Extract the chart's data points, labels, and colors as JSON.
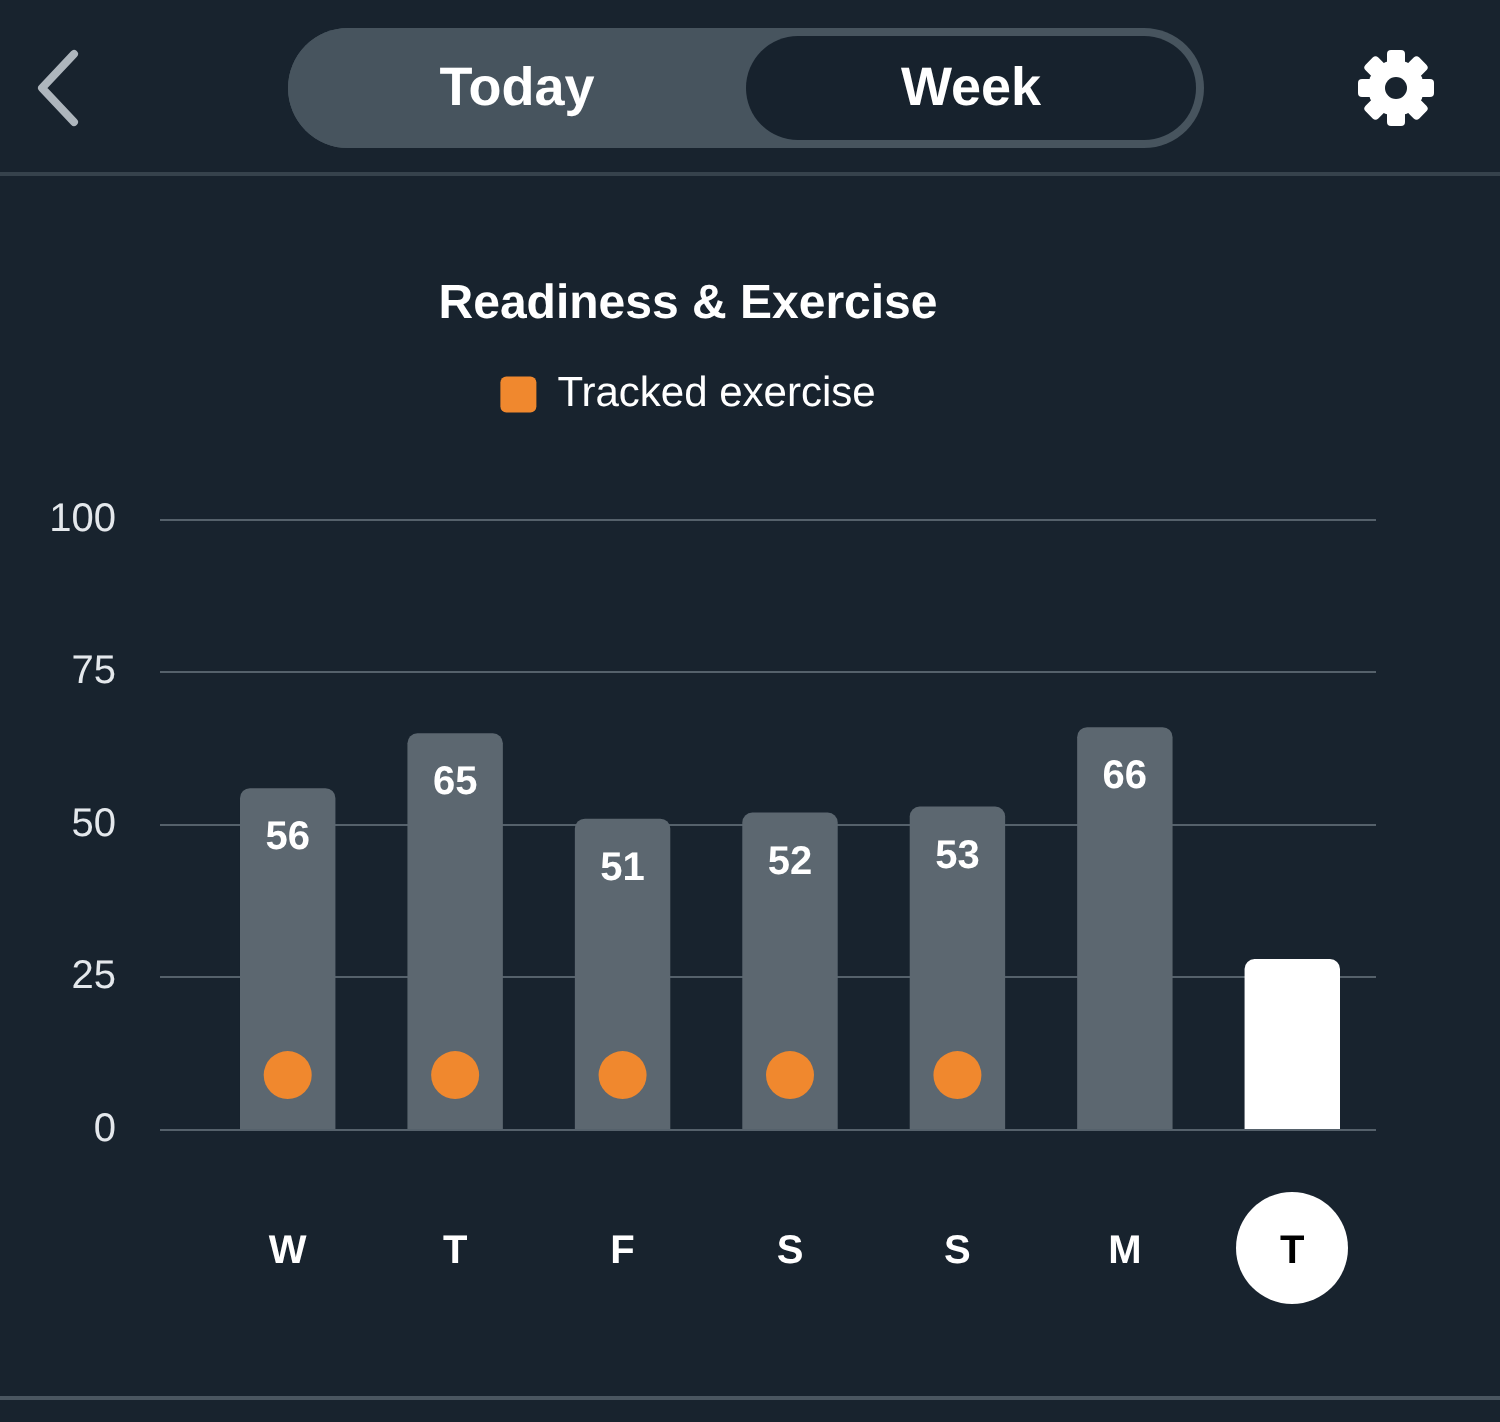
{
  "chart_data": {
    "type": "bar",
    "title": "Readiness & Exercise",
    "categories": [
      "W",
      "T",
      "F",
      "S",
      "S",
      "M",
      "T"
    ],
    "series": [
      {
        "values": [
          56,
          65,
          51,
          52,
          53,
          66,
          28
        ],
        "colors": [
          "#5c6770",
          "#5c6770",
          "#5c6770",
          "#5c6770",
          "#5c6770",
          "#5c6770",
          "#ffffff"
        ],
        "value_labels": [
          "56",
          "65",
          "51",
          "52",
          "53",
          "66",
          null
        ]
      },
      {
        "type": "scatter",
        "name": "Tracked exercise",
        "color": "#f0882e",
        "marker": "circle",
        "values": [
          9,
          9,
          9,
          9,
          9,
          null,
          null
        ]
      }
    ],
    "ylim": [
      0,
      100
    ],
    "yticks": [
      0,
      25,
      50,
      75,
      100
    ],
    "grid": "y",
    "legend": "top",
    "annotations": [
      "Today",
      "Week"
    ]
  }
}
